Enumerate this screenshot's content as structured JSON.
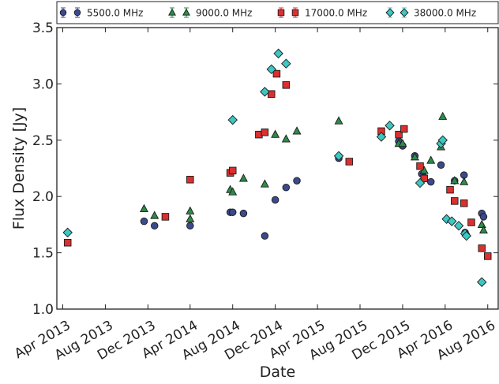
{
  "chart_data": {
    "type": "scatter",
    "xlabel": "Date",
    "ylabel": "Flux Density [Jy]",
    "x_range": [
      "2013-03-15",
      "2016-08-31"
    ],
    "ylim": [
      1.0,
      3.5
    ],
    "grid": false,
    "legend_position": "top",
    "x_ticks": [
      {
        "date": "2013-04-01",
        "label": "Apr 2013"
      },
      {
        "date": "2013-08-01",
        "label": "Aug 2013"
      },
      {
        "date": "2013-12-01",
        "label": "Dec 2013"
      },
      {
        "date": "2014-04-01",
        "label": "Apr 2014"
      },
      {
        "date": "2014-08-01",
        "label": "Aug 2014"
      },
      {
        "date": "2014-12-01",
        "label": "Dec 2014"
      },
      {
        "date": "2015-04-01",
        "label": "Apr 2015"
      },
      {
        "date": "2015-08-01",
        "label": "Aug 2015"
      },
      {
        "date": "2015-12-01",
        "label": "Dec 2015"
      },
      {
        "date": "2016-04-01",
        "label": "Apr 2016"
      },
      {
        "date": "2016-08-01",
        "label": "Aug 2016"
      }
    ],
    "y_ticks": [
      {
        "value": 1.0,
        "label": "1.0"
      },
      {
        "value": 1.5,
        "label": "1.5"
      },
      {
        "value": 2.0,
        "label": "2.0"
      },
      {
        "value": 2.5,
        "label": "2.5"
      },
      {
        "value": 3.0,
        "label": "3.0"
      },
      {
        "value": 3.5,
        "label": "3.5"
      }
    ],
    "series": [
      {
        "name": "5500.0 MHz",
        "marker": "circle",
        "color": "#3b4a8c",
        "points": [
          {
            "x": "2013-11-20",
            "y": 1.78
          },
          {
            "x": "2013-12-20",
            "y": 1.74
          },
          {
            "x": "2014-04-01",
            "y": 1.74
          },
          {
            "x": "2014-07-25",
            "y": 1.86
          },
          {
            "x": "2014-08-01",
            "y": 1.86
          },
          {
            "x": "2014-09-01",
            "y": 1.85
          },
          {
            "x": "2014-11-01",
            "y": 1.65
          },
          {
            "x": "2014-12-01",
            "y": 1.97
          },
          {
            "x": "2015-01-01",
            "y": 2.08
          },
          {
            "x": "2015-02-01",
            "y": 2.14
          },
          {
            "x": "2015-06-01",
            "y": 2.34
          },
          {
            "x": "2015-11-20",
            "y": 2.49
          },
          {
            "x": "2015-12-01",
            "y": 2.45
          },
          {
            "x": "2016-01-05",
            "y": 2.36
          },
          {
            "x": "2016-01-25",
            "y": 2.2
          },
          {
            "x": "2016-02-01",
            "y": 2.17
          },
          {
            "x": "2016-02-20",
            "y": 2.13
          },
          {
            "x": "2016-03-20",
            "y": 2.28
          },
          {
            "x": "2016-04-28",
            "y": 2.14
          },
          {
            "x": "2016-05-25",
            "y": 2.19
          },
          {
            "x": "2016-05-28",
            "y": 1.68
          },
          {
            "x": "2016-07-15",
            "y": 1.85
          },
          {
            "x": "2016-07-20",
            "y": 1.82
          }
        ]
      },
      {
        "name": "9000.0 MHz",
        "marker": "triangle",
        "color": "#2e8a4a",
        "points": [
          {
            "x": "2013-11-20",
            "y": 1.89
          },
          {
            "x": "2013-12-20",
            "y": 1.83
          },
          {
            "x": "2014-04-01",
            "y": 1.87
          },
          {
            "x": "2014-04-01",
            "y": 1.8
          },
          {
            "x": "2014-07-25",
            "y": 2.06
          },
          {
            "x": "2014-08-01",
            "y": 2.04
          },
          {
            "x": "2014-09-01",
            "y": 2.16
          },
          {
            "x": "2014-11-01",
            "y": 2.11
          },
          {
            "x": "2014-12-01",
            "y": 2.55
          },
          {
            "x": "2015-01-01",
            "y": 2.51
          },
          {
            "x": "2015-02-01",
            "y": 2.58
          },
          {
            "x": "2015-06-01",
            "y": 2.67
          },
          {
            "x": "2015-11-20",
            "y": 2.47
          },
          {
            "x": "2015-12-01",
            "y": 2.47
          },
          {
            "x": "2016-01-05",
            "y": 2.35
          },
          {
            "x": "2016-02-01",
            "y": 2.23
          },
          {
            "x": "2016-02-20",
            "y": 2.32
          },
          {
            "x": "2016-03-20",
            "y": 2.44
          },
          {
            "x": "2016-03-25",
            "y": 2.71
          },
          {
            "x": "2016-04-28",
            "y": 2.14
          },
          {
            "x": "2016-05-25",
            "y": 2.13
          },
          {
            "x": "2016-07-15",
            "y": 1.75
          },
          {
            "x": "2016-07-20",
            "y": 1.7
          }
        ]
      },
      {
        "name": "17000.0 MHz",
        "marker": "square",
        "color": "#d93030",
        "points": [
          {
            "x": "2013-04-15",
            "y": 1.59
          },
          {
            "x": "2014-01-20",
            "y": 1.82
          },
          {
            "x": "2014-04-01",
            "y": 2.15
          },
          {
            "x": "2014-07-25",
            "y": 2.21
          },
          {
            "x": "2014-08-01",
            "y": 2.23
          },
          {
            "x": "2014-10-15",
            "y": 2.55
          },
          {
            "x": "2014-11-01",
            "y": 2.57
          },
          {
            "x": "2014-11-20",
            "y": 2.91
          },
          {
            "x": "2014-12-05",
            "y": 3.09
          },
          {
            "x": "2015-01-01",
            "y": 2.99
          },
          {
            "x": "2015-07-01",
            "y": 2.31
          },
          {
            "x": "2015-10-01",
            "y": 2.58
          },
          {
            "x": "2015-11-20",
            "y": 2.55
          },
          {
            "x": "2015-12-05",
            "y": 2.6
          },
          {
            "x": "2016-01-20",
            "y": 2.27
          },
          {
            "x": "2016-02-01",
            "y": 2.16
          },
          {
            "x": "2016-04-15",
            "y": 2.06
          },
          {
            "x": "2016-04-28",
            "y": 1.96
          },
          {
            "x": "2016-05-25",
            "y": 1.94
          },
          {
            "x": "2016-06-15",
            "y": 1.77
          },
          {
            "x": "2016-07-15",
            "y": 1.54
          },
          {
            "x": "2016-08-01",
            "y": 1.47
          }
        ]
      },
      {
        "name": "38000.0 MHz",
        "marker": "diamond",
        "color": "#3ec7c2",
        "points": [
          {
            "x": "2013-04-15",
            "y": 1.68
          },
          {
            "x": "2014-08-01",
            "y": 2.68
          },
          {
            "x": "2014-11-01",
            "y": 2.93
          },
          {
            "x": "2014-12-10",
            "y": 3.27
          },
          {
            "x": "2014-11-20",
            "y": 3.13
          },
          {
            "x": "2015-01-01",
            "y": 3.18
          },
          {
            "x": "2015-06-01",
            "y": 2.36
          },
          {
            "x": "2015-10-01",
            "y": 2.53
          },
          {
            "x": "2015-10-25",
            "y": 2.63
          },
          {
            "x": "2016-01-20",
            "y": 2.12
          },
          {
            "x": "2016-03-20",
            "y": 2.47
          },
          {
            "x": "2016-03-25",
            "y": 2.5
          },
          {
            "x": "2016-04-05",
            "y": 1.8
          },
          {
            "x": "2016-04-20",
            "y": 1.78
          },
          {
            "x": "2016-05-10",
            "y": 1.74
          },
          {
            "x": "2016-05-28",
            "y": 1.67
          },
          {
            "x": "2016-06-01",
            "y": 1.65
          },
          {
            "x": "2016-07-15",
            "y": 1.24
          }
        ]
      }
    ]
  }
}
